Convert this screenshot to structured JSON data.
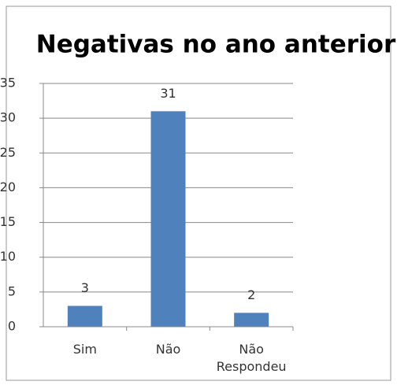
{
  "chart_data": {
    "type": "bar",
    "title": "Negativas no ano anterior",
    "categories": [
      "Sim",
      "Não",
      "Não Respondeu"
    ],
    "values": [
      3,
      31,
      2
    ],
    "color": "#4f81bd",
    "ylim": [
      0,
      35
    ],
    "yticks": [
      0,
      5,
      10,
      15,
      20,
      25,
      30,
      35
    ],
    "grid": true
  }
}
